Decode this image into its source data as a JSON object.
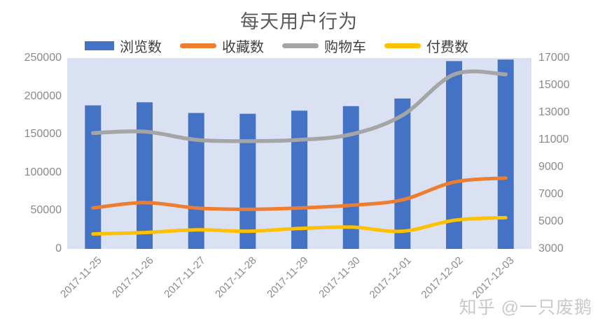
{
  "title": "每天用户行为",
  "watermark": "知乎 @一只废鹅",
  "colors": {
    "pv": "#4472C4",
    "fav": "#ED7D31",
    "cart": "#A5A5A5",
    "buy": "#FFC000",
    "plot_bg": "#D9E1F2",
    "axis_text": "#8A8A8A",
    "title_text": "#595959",
    "legend_text": "#404040",
    "watermark_text": "#C9C9C9"
  },
  "legend": [
    {
      "label": "浏览数",
      "key": "pv",
      "swatch": "bar"
    },
    {
      "label": "收藏数",
      "key": "fav",
      "swatch": "line"
    },
    {
      "label": "购物车",
      "key": "cart",
      "swatch": "line"
    },
    {
      "label": "付费数",
      "key": "buy",
      "swatch": "line"
    }
  ],
  "chart_data": {
    "type": "bar+line combo",
    "title": "每天用户行为",
    "grid": false,
    "legend_position": "top",
    "categories": [
      "2017-11-25",
      "2017-11-26",
      "2017-11-27",
      "2017-11-28",
      "2017-11-29",
      "2017-11-30",
      "2017-12-01",
      "2017-12-02",
      "2017-12-03"
    ],
    "series": [
      {
        "name": "浏览数",
        "key": "pv",
        "type": "bar",
        "axis": "left",
        "values": [
          188000,
          192000,
          178000,
          177000,
          181000,
          187000,
          197000,
          246000,
          248000
        ]
      },
      {
        "name": "收藏数",
        "key": "fav",
        "type": "line",
        "axis": "right",
        "values": [
          6000,
          6400,
          6000,
          5900,
          6000,
          6200,
          6600,
          7900,
          8200
        ]
      },
      {
        "name": "购物车",
        "key": "cart",
        "type": "line",
        "axis": "right",
        "values": [
          11500,
          11600,
          11000,
          10900,
          11000,
          11400,
          12800,
          15800,
          15800
        ]
      },
      {
        "name": "付费数",
        "key": "buy",
        "type": "line",
        "axis": "right",
        "values": [
          4100,
          4200,
          4400,
          4300,
          4500,
          4600,
          4300,
          5100,
          5300
        ]
      }
    ],
    "left_axis": {
      "min": 0,
      "max": 250000,
      "tick_labels": [
        "250000",
        "200000",
        "150000",
        "100000",
        "50000",
        "0"
      ]
    },
    "right_axis": {
      "min": 3000,
      "max": 17000,
      "tick_labels": [
        "17000",
        "15000",
        "13000",
        "11000",
        "9000",
        "7000",
        "5000",
        "3000"
      ]
    }
  }
}
